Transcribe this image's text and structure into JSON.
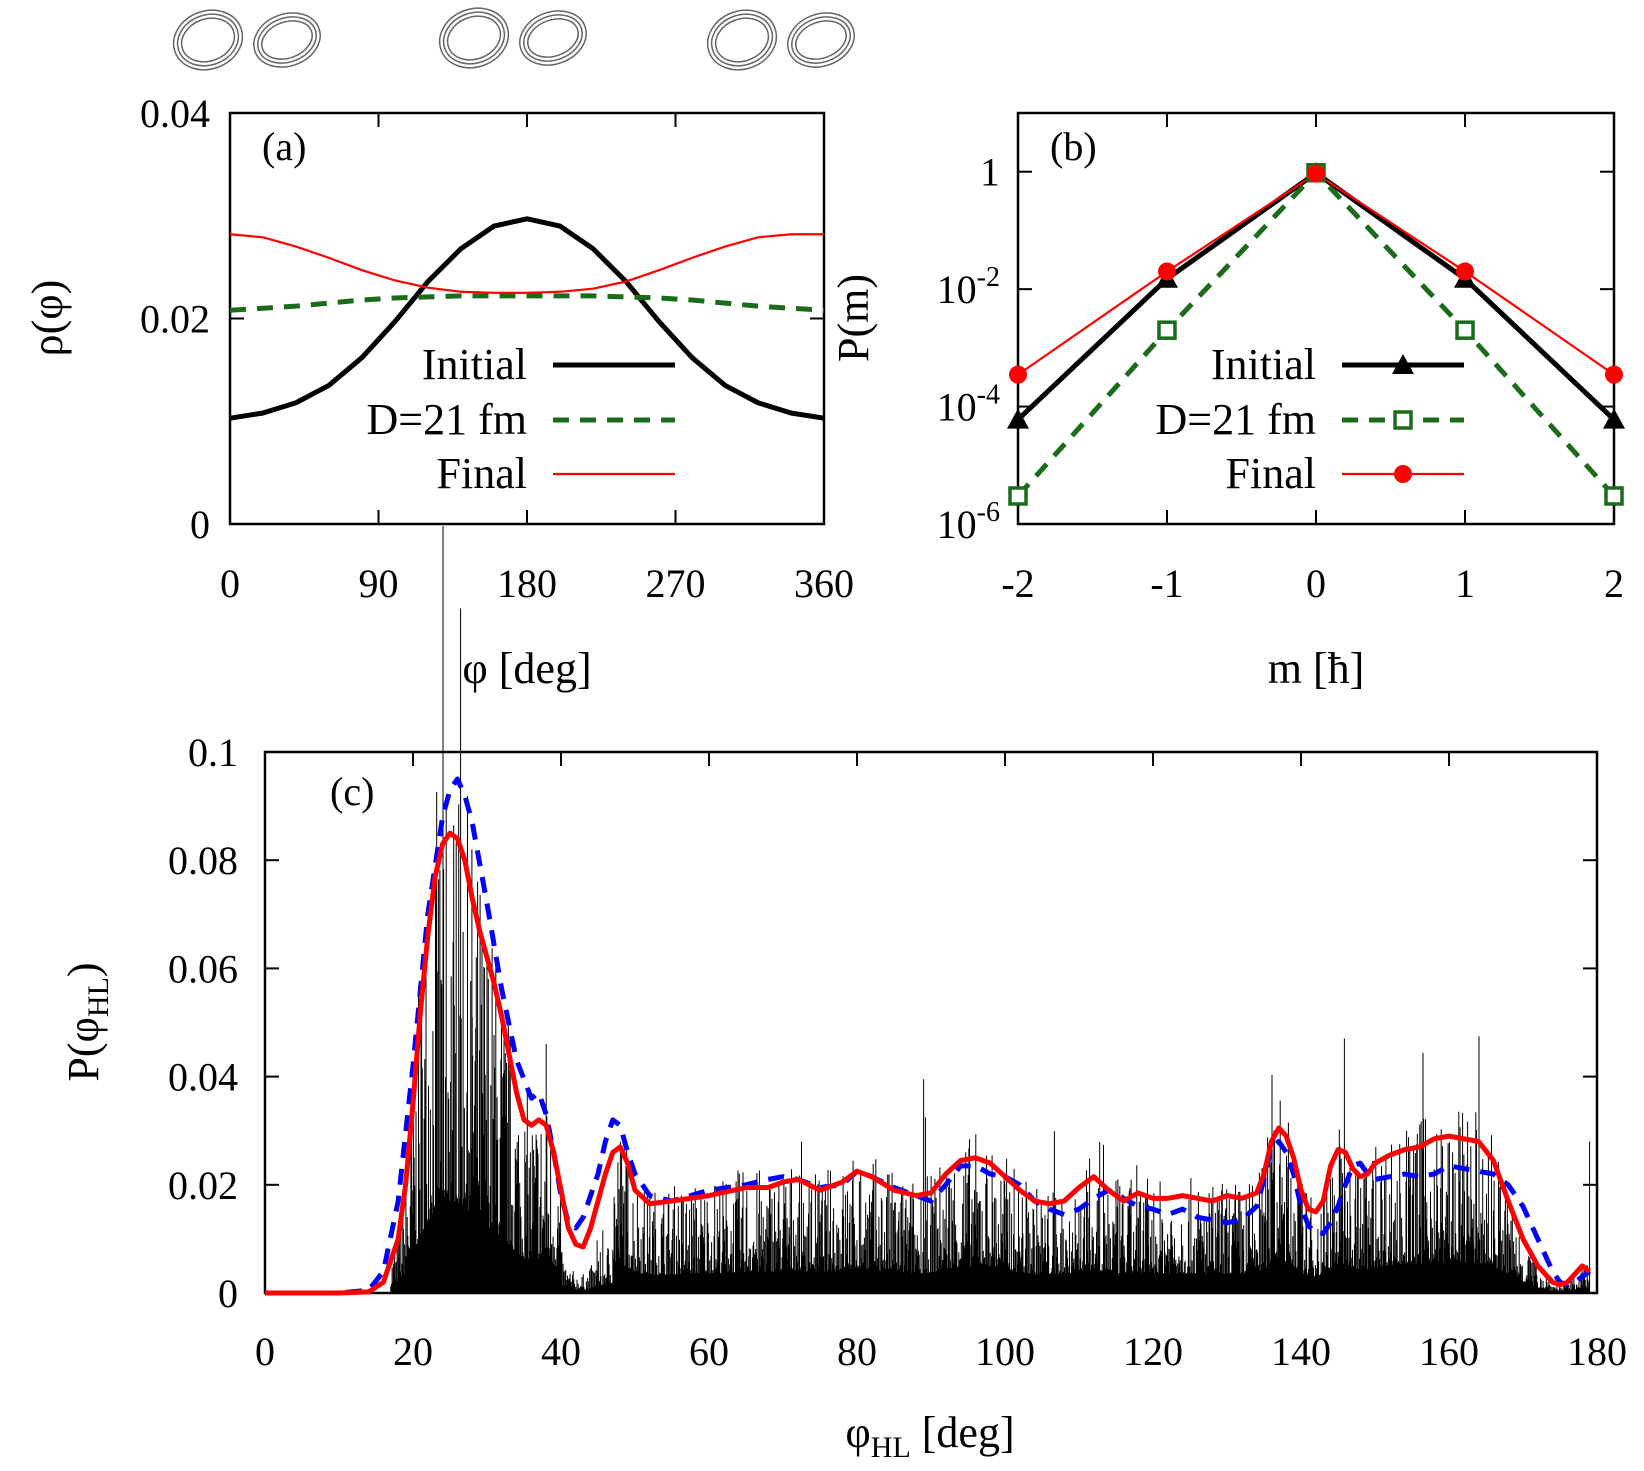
{
  "chart_data": [
    {
      "panel_label": "(a)",
      "type": "line",
      "xlabel": "φ [deg]",
      "ylabel": "ρ(φ)",
      "xlim": [
        0,
        360
      ],
      "ylim": [
        0,
        0.04
      ],
      "x_ticks": [
        0,
        90,
        180,
        270,
        360
      ],
      "x_tick_labels": [
        "0",
        "90",
        "180",
        "270",
        "360"
      ],
      "y_ticks": [
        0,
        0.02,
        0.04
      ],
      "y_tick_labels": [
        "0",
        "0.02",
        "0.04"
      ],
      "legend_position": "bottom-right",
      "x": [
        0,
        20,
        40,
        60,
        80,
        100,
        120,
        140,
        160,
        180,
        200,
        220,
        240,
        260,
        280,
        300,
        320,
        340,
        360
      ],
      "series": [
        {
          "name": "Initial",
          "color": "#000000",
          "dash": "solid",
          "weight": "thick",
          "values": [
            0.0103,
            0.0108,
            0.0118,
            0.0135,
            0.0162,
            0.0197,
            0.0236,
            0.0268,
            0.029,
            0.0297,
            0.029,
            0.0268,
            0.0236,
            0.0197,
            0.0162,
            0.0135,
            0.0118,
            0.0108,
            0.0103
          ]
        },
        {
          "name": "D=21 fm",
          "color": "#1a6b1a",
          "dash": "dashed",
          "weight": "thick",
          "values": [
            0.0208,
            0.021,
            0.0212,
            0.0215,
            0.0218,
            0.022,
            0.0221,
            0.0222,
            0.0222,
            0.0222,
            0.0222,
            0.0222,
            0.0221,
            0.022,
            0.0218,
            0.0215,
            0.0212,
            0.021,
            0.0208
          ]
        },
        {
          "name": "Final",
          "color": "#ff0000",
          "dash": "solid",
          "weight": "thin",
          "values": [
            0.0282,
            0.0279,
            0.027,
            0.0259,
            0.0247,
            0.0237,
            0.023,
            0.0226,
            0.0225,
            0.0225,
            0.0226,
            0.0229,
            0.0236,
            0.0247,
            0.0259,
            0.027,
            0.0279,
            0.0282,
            0.0282
          ]
        }
      ]
    },
    {
      "panel_label": "(b)",
      "type": "line",
      "xlabel": "m [ħ]",
      "ylabel": "P(m)",
      "yscale": "log",
      "xlim": [
        -2,
        2
      ],
      "ylim": [
        1e-06,
        10
      ],
      "x_ticks": [
        -2,
        -1,
        0,
        1,
        2
      ],
      "x_tick_labels": [
        "-2",
        "-1",
        "0",
        "1",
        "2"
      ],
      "y_ticks": [
        {
          "value": 1,
          "label": "1",
          "exp": ""
        },
        {
          "value": 0.01,
          "label": "10",
          "exp": "-2"
        },
        {
          "value": 0.0001,
          "label": "10",
          "exp": "-4"
        },
        {
          "value": 1e-06,
          "label": "10",
          "exp": "-6"
        }
      ],
      "legend_position": "bottom-right",
      "x": [
        -2,
        -1,
        0,
        1,
        2
      ],
      "series": [
        {
          "name": "Initial",
          "color": "#000000",
          "marker": "triangle",
          "dash": "solid",
          "weight": "thick",
          "values": [
            6e-05,
            0.015,
            0.95,
            0.015,
            6e-05
          ]
        },
        {
          "name": "D=21 fm",
          "color": "#1a6b1a",
          "marker": "open-square",
          "dash": "dashed",
          "weight": "thick",
          "values": [
            3e-06,
            0.002,
            0.96,
            0.002,
            3e-06
          ]
        },
        {
          "name": "Final",
          "color": "#ff0000",
          "marker": "filled-circle",
          "dash": "solid",
          "weight": "thin",
          "values": [
            0.00035,
            0.02,
            0.93,
            0.02,
            0.00035
          ]
        }
      ]
    },
    {
      "panel_label": "(c)",
      "type": "line",
      "xlabel": "φ",
      "xlabel_sub": "HL",
      "xlabel_unit": " [deg]",
      "ylabel": "P(φ",
      "ylabel_sub": "HL",
      "ylabel_end": ")",
      "xlim": [
        0,
        180
      ],
      "ylim": [
        0,
        0.1
      ],
      "x_ticks": [
        0,
        20,
        40,
        60,
        80,
        100,
        120,
        140,
        160,
        180
      ],
      "x_tick_labels": [
        "0",
        "20",
        "40",
        "60",
        "80",
        "100",
        "120",
        "140",
        "160",
        "180"
      ],
      "y_ticks": [
        0,
        0.02,
        0.04,
        0.06,
        0.08,
        0.1
      ],
      "y_tick_labels": [
        "0",
        "0.02",
        "0.04",
        "0.06",
        "0.08",
        "0.1"
      ],
      "series": [
        {
          "color": "#0000ff",
          "dash": "dashed",
          "weight": "thick",
          "x": [
            0,
            10,
            14,
            16,
            18,
            20,
            22,
            24,
            25,
            26,
            27,
            28,
            30,
            32,
            34,
            36,
            37,
            38,
            39,
            40,
            41,
            42,
            43,
            44,
            45,
            46,
            47,
            48,
            49,
            50,
            52,
            55,
            60,
            65,
            68,
            70,
            72,
            75,
            78,
            80,
            82,
            85,
            88,
            90,
            92,
            94,
            96,
            98,
            100,
            102,
            104,
            106,
            108,
            110,
            112,
            114,
            116,
            118,
            120,
            122,
            124,
            126,
            128,
            130,
            132,
            134,
            135,
            136,
            137,
            138,
            139,
            140,
            141,
            142,
            143,
            144,
            145,
            146,
            147,
            148,
            149,
            150,
            152,
            154,
            156,
            158,
            160,
            162,
            164,
            166,
            168,
            170,
            172,
            174,
            175,
            176,
            177,
            178,
            179
          ],
          "values": [
            0,
            0,
            0.0005,
            0.004,
            0.017,
            0.042,
            0.07,
            0.088,
            0.093,
            0.095,
            0.092,
            0.087,
            0.072,
            0.056,
            0.043,
            0.036,
            0.037,
            0.033,
            0.026,
            0.018,
            0.013,
            0.012,
            0.014,
            0.018,
            0.022,
            0.028,
            0.032,
            0.031,
            0.026,
            0.022,
            0.018,
            0.017,
            0.019,
            0.02,
            0.021,
            0.0215,
            0.021,
            0.0195,
            0.02,
            0.0225,
            0.0215,
            0.0195,
            0.018,
            0.017,
            0.02,
            0.0235,
            0.0235,
            0.022,
            0.0215,
            0.02,
            0.017,
            0.0155,
            0.0145,
            0.0155,
            0.0175,
            0.019,
            0.0175,
            0.016,
            0.0155,
            0.0145,
            0.0155,
            0.014,
            0.0135,
            0.013,
            0.0135,
            0.016,
            0.021,
            0.027,
            0.028,
            0.026,
            0.022,
            0.016,
            0.0125,
            0.011,
            0.011,
            0.013,
            0.016,
            0.02,
            0.0235,
            0.024,
            0.022,
            0.021,
            0.0215,
            0.022,
            0.0215,
            0.022,
            0.0235,
            0.023,
            0.0225,
            0.022,
            0.02,
            0.016,
            0.01,
            0.004,
            0.002,
            0.0015,
            0.002,
            0.003,
            0.004
          ]
        },
        {
          "color": "#ff0000",
          "dash": "solid",
          "weight": "thick",
          "x": [
            0,
            10,
            14,
            16,
            18,
            19,
            20,
            21,
            22,
            23,
            24,
            25,
            26,
            27,
            28,
            29,
            30,
            31,
            32,
            33,
            34,
            35,
            36,
            37,
            38,
            39,
            40,
            41,
            42,
            43,
            44,
            45,
            46,
            47,
            48,
            49,
            50,
            52,
            55,
            60,
            65,
            68,
            70,
            72,
            75,
            78,
            80,
            82,
            85,
            88,
            90,
            92,
            94,
            96,
            98,
            100,
            102,
            104,
            106,
            108,
            110,
            112,
            114,
            116,
            118,
            120,
            122,
            124,
            126,
            128,
            130,
            132,
            134,
            135,
            136,
            137,
            138,
            139,
            140,
            141,
            142,
            143,
            144,
            145,
            146,
            147,
            148,
            149,
            150,
            152,
            154,
            156,
            158,
            160,
            162,
            164,
            166,
            168,
            170,
            172,
            174,
            175,
            176,
            177,
            178,
            179
          ],
          "values": [
            0,
            0,
            0.0002,
            0.002,
            0.01,
            0.02,
            0.035,
            0.052,
            0.066,
            0.077,
            0.083,
            0.085,
            0.084,
            0.08,
            0.073,
            0.067,
            0.062,
            0.057,
            0.051,
            0.044,
            0.037,
            0.032,
            0.031,
            0.032,
            0.031,
            0.026,
            0.019,
            0.012,
            0.009,
            0.0085,
            0.012,
            0.017,
            0.022,
            0.026,
            0.027,
            0.024,
            0.019,
            0.0165,
            0.017,
            0.018,
            0.0195,
            0.0195,
            0.0205,
            0.021,
            0.019,
            0.0205,
            0.0225,
            0.0215,
            0.019,
            0.018,
            0.0185,
            0.022,
            0.0245,
            0.025,
            0.024,
            0.0215,
            0.019,
            0.017,
            0.0165,
            0.017,
            0.0195,
            0.0215,
            0.019,
            0.017,
            0.0185,
            0.0175,
            0.0175,
            0.018,
            0.0175,
            0.017,
            0.018,
            0.0175,
            0.0185,
            0.022,
            0.028,
            0.0305,
            0.029,
            0.025,
            0.019,
            0.0155,
            0.015,
            0.017,
            0.0235,
            0.0265,
            0.026,
            0.023,
            0.0215,
            0.022,
            0.024,
            0.0255,
            0.0265,
            0.027,
            0.0285,
            0.029,
            0.0285,
            0.028,
            0.0245,
            0.017,
            0.01,
            0.005,
            0.002,
            0.0015,
            0.002,
            0.0035,
            0.005,
            0.004
          ]
        }
      ]
    }
  ]
}
